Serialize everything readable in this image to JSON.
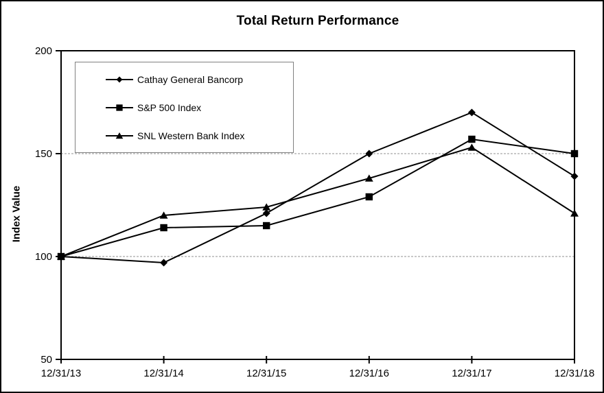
{
  "page": {
    "background": "#ffffff",
    "border_color": "#000000"
  },
  "chart_data": {
    "type": "line",
    "title": "Total Return Performance",
    "ylabel": "Index Value",
    "xlabel": "",
    "categories": [
      "12/31/13",
      "12/31/14",
      "12/31/15",
      "12/31/16",
      "12/31/17",
      "12/31/18"
    ],
    "ylim": [
      50,
      200
    ],
    "yticks": [
      50,
      100,
      150,
      200
    ],
    "gridlines_at": [
      100,
      150
    ],
    "grid": "horizontal dashed gridlines at 100 and 150 only",
    "legend_position": "top-left inside plot, boxed",
    "line_color": "#000000",
    "gridline_color": "#909090",
    "legend_border_color": "#808080",
    "series": [
      {
        "name": "Cathay General Bancorp",
        "marker": "diamond",
        "color": "#000000",
        "values": [
          100,
          97,
          121,
          150,
          170,
          139
        ]
      },
      {
        "name": "S&P 500 Index",
        "marker": "square",
        "color": "#000000",
        "values": [
          100,
          114,
          115,
          129,
          157,
          150
        ]
      },
      {
        "name": "SNL Western Bank Index",
        "marker": "triangle",
        "color": "#000000",
        "values": [
          100,
          120,
          124,
          138,
          153,
          121
        ]
      }
    ]
  }
}
